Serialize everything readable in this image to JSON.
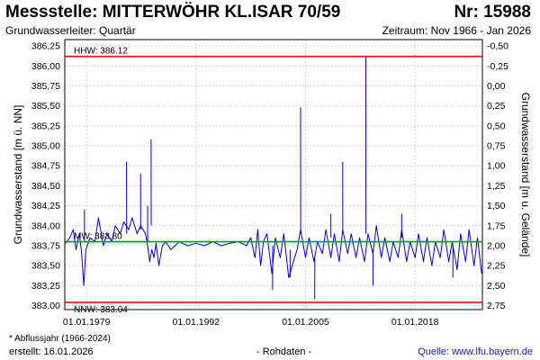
{
  "header": {
    "title": "Messstelle: MITTERWÖHR KL.ISAR 70/59",
    "station_nr": "Nr: 15988",
    "aquifer": "Grundwasserleiter: Quartär",
    "period": "Zeitraum: Nov 1966 - Jan 2026"
  },
  "footer": {
    "footnote": "* Abflussjahr (1966-2024)",
    "created": "erstellt:  16.01.2026",
    "datatype": "- Rohdaten -",
    "source": "Quelle: www.lfu.bayern.de"
  },
  "colors": {
    "series": "#0000ee",
    "extreme_lines": "#ee0000",
    "mean_line": "#009900",
    "grid": "#d4d4d4"
  },
  "chart_data": {
    "type": "line",
    "ylabel": "Grundwasserstand [m ü. NN]",
    "y2label": "Grundwasserstand [m u. Gelände]",
    "ylim": [
      382.95,
      386.33
    ],
    "xlim": [
      "1976-06-01",
      "2025-12-31"
    ],
    "grid": true,
    "y_ticks": [
      "386,25",
      "386,00",
      "385,75",
      "385,50",
      "385,25",
      "385,00",
      "384,75",
      "384,50",
      "384,25",
      "384,00",
      "383,75",
      "383,50",
      "383,25",
      "383,00"
    ],
    "y2_ticks": [
      "-0,50",
      "-0,25",
      "0,00",
      "0,25",
      "0,50",
      "0,75",
      "1,00",
      "1,25",
      "1,50",
      "1,75",
      "2,00",
      "2,25",
      "2,50",
      "2,75"
    ],
    "x_ticks": [
      "01.01.1979",
      "01.01.1992",
      "01.01.2005",
      "01.01.2018"
    ],
    "reference_lines": [
      {
        "name": "HHW",
        "label": "HHW: 386.12",
        "value": 386.12,
        "color": "#ee0000"
      },
      {
        "name": "MW",
        "label": "MW: 383.80",
        "value": 383.8,
        "color": "#009900"
      },
      {
        "name": "NNW",
        "label": "NNW: 383.04",
        "value": 383.04,
        "color": "#ee0000"
      }
    ],
    "series": [
      {
        "values": [
          {
            "x": "1976-07-01",
            "y": 383.78
          },
          {
            "x": "1977-01-01",
            "y": 383.85
          },
          {
            "x": "1977-06-01",
            "y": 383.95
          },
          {
            "x": "1977-10-01",
            "y": 383.7
          },
          {
            "x": "1978-03-01",
            "y": 383.9
          },
          {
            "x": "1978-06-01",
            "y": 383.65
          },
          {
            "x": "1978-09-01",
            "y": 383.25
          },
          {
            "x": "1978-12-01",
            "y": 383.7
          },
          {
            "x": "1979-06-01",
            "y": 383.85
          },
          {
            "x": "1980-01-01",
            "y": 383.8
          },
          {
            "x": "1980-06-01",
            "y": 384.1
          },
          {
            "x": "1981-01-01",
            "y": 383.75
          },
          {
            "x": "1981-06-01",
            "y": 383.9
          },
          {
            "x": "1982-01-01",
            "y": 383.8
          },
          {
            "x": "1982-06-01",
            "y": 384.0
          },
          {
            "x": "1983-01-01",
            "y": 383.9
          },
          {
            "x": "1983-06-01",
            "y": 384.05
          },
          {
            "x": "1984-01-01",
            "y": 383.95
          },
          {
            "x": "1984-06-01",
            "y": 384.1
          },
          {
            "x": "1985-01-01",
            "y": 383.9
          },
          {
            "x": "1985-06-01",
            "y": 384.0
          },
          {
            "x": "1986-01-01",
            "y": 383.9
          },
          {
            "x": "1986-04-01",
            "y": 383.75
          },
          {
            "x": "1986-07-01",
            "y": 383.55
          },
          {
            "x": "1986-10-01",
            "y": 383.7
          },
          {
            "x": "1987-01-01",
            "y": 383.6
          },
          {
            "x": "1987-04-01",
            "y": 383.78
          },
          {
            "x": "1987-08-01",
            "y": 383.5
          },
          {
            "x": "1988-01-01",
            "y": 383.75
          },
          {
            "x": "1988-06-01",
            "y": 383.8
          },
          {
            "x": "1989-01-01",
            "y": 383.7
          },
          {
            "x": "1990-01-01",
            "y": 383.8
          },
          {
            "x": "1991-01-01",
            "y": 383.75
          },
          {
            "x": "1992-01-01",
            "y": 383.78
          },
          {
            "x": "1993-01-01",
            "y": 383.75
          },
          {
            "x": "1994-01-01",
            "y": 383.8
          },
          {
            "x": "1995-01-01",
            "y": 383.75
          },
          {
            "x": "1996-01-01",
            "y": 383.78
          },
          {
            "x": "1997-01-01",
            "y": 383.8
          },
          {
            "x": "1998-01-01",
            "y": 383.75
          },
          {
            "x": "1998-07-01",
            "y": 383.85
          },
          {
            "x": "1999-01-01",
            "y": 383.6
          },
          {
            "x": "1999-05-01",
            "y": 383.95
          },
          {
            "x": "1999-09-01",
            "y": 383.5
          },
          {
            "x": "2000-01-01",
            "y": 383.8
          },
          {
            "x": "2000-06-01",
            "y": 383.9
          },
          {
            "x": "2001-01-01",
            "y": 383.4
          },
          {
            "x": "2001-06-01",
            "y": 383.85
          },
          {
            "x": "2002-01-01",
            "y": 383.6
          },
          {
            "x": "2002-06-01",
            "y": 383.9
          },
          {
            "x": "2003-01-01",
            "y": 383.35
          },
          {
            "x": "2003-06-01",
            "y": 383.5
          },
          {
            "x": "2004-01-01",
            "y": 383.7
          },
          {
            "x": "2004-06-01",
            "y": 383.95
          },
          {
            "x": "2005-01-01",
            "y": 383.6
          },
          {
            "x": "2005-06-01",
            "y": 383.85
          },
          {
            "x": "2006-01-01",
            "y": 383.55
          },
          {
            "x": "2006-06-01",
            "y": 383.8
          },
          {
            "x": "2007-01-01",
            "y": 383.65
          },
          {
            "x": "2007-06-01",
            "y": 383.95
          },
          {
            "x": "2008-01-01",
            "y": 383.6
          },
          {
            "x": "2008-06-01",
            "y": 383.9
          },
          {
            "x": "2009-01-01",
            "y": 383.55
          },
          {
            "x": "2009-06-01",
            "y": 383.95
          },
          {
            "x": "2010-01-01",
            "y": 383.65
          },
          {
            "x": "2010-06-01",
            "y": 383.9
          },
          {
            "x": "2011-01-01",
            "y": 383.6
          },
          {
            "x": "2011-06-01",
            "y": 383.85
          },
          {
            "x": "2012-01-01",
            "y": 383.55
          },
          {
            "x": "2012-06-01",
            "y": 383.9
          },
          {
            "x": "2013-01-01",
            "y": 383.65
          },
          {
            "x": "2013-06-01",
            "y": 384.0
          },
          {
            "x": "2014-01-01",
            "y": 383.6
          },
          {
            "x": "2014-06-01",
            "y": 383.85
          },
          {
            "x": "2015-01-01",
            "y": 383.55
          },
          {
            "x": "2015-06-01",
            "y": 383.8
          },
          {
            "x": "2016-01-01",
            "y": 383.6
          },
          {
            "x": "2016-06-01",
            "y": 383.95
          },
          {
            "x": "2017-01-01",
            "y": 383.55
          },
          {
            "x": "2017-06-01",
            "y": 383.8
          },
          {
            "x": "2018-01-01",
            "y": 383.6
          },
          {
            "x": "2018-06-01",
            "y": 383.9
          },
          {
            "x": "2019-01-01",
            "y": 383.55
          },
          {
            "x": "2019-06-01",
            "y": 383.85
          },
          {
            "x": "2020-01-01",
            "y": 383.5
          },
          {
            "x": "2020-06-01",
            "y": 383.8
          },
          {
            "x": "2021-01-01",
            "y": 383.6
          },
          {
            "x": "2021-06-01",
            "y": 383.95
          },
          {
            "x": "2022-01-01",
            "y": 383.55
          },
          {
            "x": "2022-06-01",
            "y": 383.8
          },
          {
            "x": "2023-01-01",
            "y": 383.45
          },
          {
            "x": "2023-06-01",
            "y": 383.9
          },
          {
            "x": "2024-01-01",
            "y": 383.55
          },
          {
            "x": "2024-06-01",
            "y": 383.95
          },
          {
            "x": "2025-01-01",
            "y": 383.5
          },
          {
            "x": "2025-06-01",
            "y": 383.85
          },
          {
            "x": "2025-12-01",
            "y": 383.4
          }
        ]
      },
      {
        "values": [
          {
            "x": "1978-10-01",
            "y": 384.2
          },
          {
            "x": "1978-10-05",
            "y": 383.8
          },
          {
            "x": "1983-10-01",
            "y": 384.8
          },
          {
            "x": "1983-10-05",
            "y": 383.9
          },
          {
            "x": "1985-06-01",
            "y": 384.65
          },
          {
            "x": "1985-06-05",
            "y": 383.95
          },
          {
            "x": "1986-04-01",
            "y": 384.25
          },
          {
            "x": "1986-04-05",
            "y": 383.8
          },
          {
            "x": "1986-09-01",
            "y": 385.08
          },
          {
            "x": "1986-09-05",
            "y": 384.0
          }
        ]
      },
      {
        "values": [
          {
            "x": "2001-02-01",
            "y": 383.2
          },
          {
            "x": "2001-02-05",
            "y": 383.75
          },
          {
            "x": "2003-03-01",
            "y": 383.35
          },
          {
            "x": "2003-03-05",
            "y": 383.7
          },
          {
            "x": "2004-06-01",
            "y": 385.48
          },
          {
            "x": "2004-06-05",
            "y": 383.9
          },
          {
            "x": "2006-02-01",
            "y": 383.08
          },
          {
            "x": "2006-02-05",
            "y": 383.6
          },
          {
            "x": "2008-01-01",
            "y": 384.15
          },
          {
            "x": "2008-01-05",
            "y": 383.85
          },
          {
            "x": "2009-06-01",
            "y": 384.8
          },
          {
            "x": "2009-06-05",
            "y": 383.95
          },
          {
            "x": "2012-03-01",
            "y": 386.12
          },
          {
            "x": "2012-03-05",
            "y": 383.9
          },
          {
            "x": "2013-01-01",
            "y": 383.25
          },
          {
            "x": "2013-01-05",
            "y": 383.7
          },
          {
            "x": "2016-06-01",
            "y": 384.15
          },
          {
            "x": "2016-06-05",
            "y": 383.85
          },
          {
            "x": "2022-07-01",
            "y": 383.35
          },
          {
            "x": "2022-07-05",
            "y": 383.75
          }
        ]
      }
    ]
  }
}
